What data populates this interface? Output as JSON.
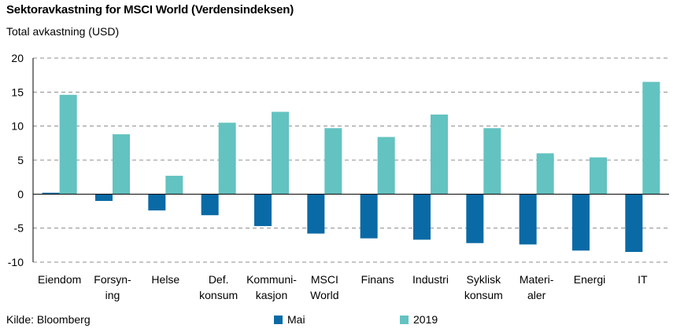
{
  "title": "Sektoravkastning for MSCI World (Verdensindeksen)",
  "subtitle": "Total avkastning (USD)",
  "source": "Kilde: Bloomberg",
  "colors": {
    "mai": "#0a6aa6",
    "y2019": "#63c3c1",
    "grid": "#8c8c8c"
  },
  "chart_data": {
    "type": "bar",
    "title": "Sektoravkastning for MSCI World (Verdensindeksen)",
    "ylabel": "Total avkastning (USD)",
    "ylim": [
      -10,
      20
    ],
    "yticks": [
      -10,
      -5,
      0,
      5,
      10,
      15,
      20
    ],
    "grid": true,
    "legend": "bottom",
    "categories": [
      [
        "Eiendom"
      ],
      [
        "Forsyn-",
        "ing"
      ],
      [
        "Helse"
      ],
      [
        "Def.",
        "konsum"
      ],
      [
        "Kommuni-",
        "kasjon"
      ],
      [
        "MSCI",
        "World"
      ],
      [
        "Finans"
      ],
      [
        "Industri"
      ],
      [
        "Syklisk",
        "konsum"
      ],
      [
        "Materi-",
        "aler"
      ],
      [
        "Energi"
      ],
      [
        "IT"
      ]
    ],
    "series": [
      {
        "name": "Mai",
        "values": [
          0.2,
          -1.0,
          -2.4,
          -3.1,
          -4.7,
          -5.8,
          -6.5,
          -6.7,
          -7.2,
          -7.4,
          -8.3,
          -8.5
        ]
      },
      {
        "name": "2019",
        "values": [
          14.6,
          8.8,
          2.7,
          10.5,
          12.1,
          9.7,
          8.4,
          11.7,
          9.7,
          6.0,
          5.4,
          16.5
        ]
      }
    ]
  }
}
